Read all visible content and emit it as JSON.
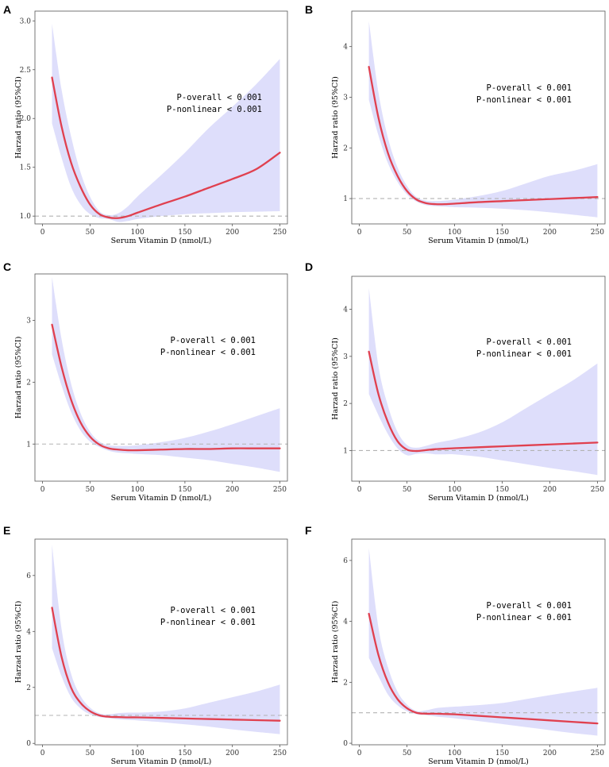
{
  "colors": {
    "curve": "#e0404f",
    "band": "#dcdcfb",
    "reference_line": "#b3b3b3",
    "frame": "#555555"
  },
  "chart_data": [
    {
      "panel": "A",
      "type": "line",
      "xlabel": "Serum Vitamin D (nmol/L)",
      "ylabel": "Harzad ratio (95%CI)",
      "xlim": [
        -8,
        258
      ],
      "ylim": [
        0.92,
        3.1
      ],
      "xticks": [
        0,
        50,
        100,
        150,
        200,
        250
      ],
      "yticks": [
        1.0,
        1.5,
        2.0,
        2.5,
        3.0
      ],
      "ytick_labels": [
        "1.0",
        "1.5",
        "2.0",
        "2.5",
        "3.0"
      ],
      "reference": 1,
      "annotations": [
        "P-overall < 0.001",
        "P-nonlinear < 0.001"
      ],
      "series": {
        "x": [
          10,
          20,
          30,
          40,
          50,
          60,
          70,
          80,
          90,
          100,
          125,
          150,
          175,
          200,
          225,
          250
        ],
        "hr": [
          2.42,
          1.92,
          1.55,
          1.3,
          1.12,
          1.02,
          0.985,
          0.98,
          1.0,
          1.035,
          1.12,
          1.2,
          1.29,
          1.38,
          1.48,
          1.65
        ],
        "lower": [
          1.95,
          1.6,
          1.3,
          1.12,
          1.02,
          0.98,
          0.97,
          0.94,
          0.95,
          0.97,
          1.0,
          1.02,
          1.03,
          1.04,
          1.045,
          1.05
        ],
        "upper": [
          2.97,
          2.3,
          1.82,
          1.45,
          1.2,
          1.05,
          1.01,
          1.03,
          1.1,
          1.2,
          1.42,
          1.65,
          1.9,
          2.12,
          2.35,
          2.61
        ]
      }
    },
    {
      "panel": "B",
      "type": "line",
      "xlabel": "Serum Vitamin D (nmol/L)",
      "ylabel": "Harzad ratio (95%CI)",
      "xlim": [
        -8,
        258
      ],
      "ylim": [
        0.5,
        4.7
      ],
      "xticks": [
        0,
        50,
        100,
        150,
        200,
        250
      ],
      "yticks": [
        1,
        2,
        3,
        4
      ],
      "ytick_labels": [
        "1",
        "2",
        "3",
        "4"
      ],
      "reference": 1,
      "annotations": [
        "P-overall < 0.001",
        "P-nonlinear < 0.001"
      ],
      "series": {
        "x": [
          10,
          20,
          30,
          40,
          50,
          60,
          70,
          80,
          90,
          100,
          125,
          150,
          175,
          200,
          225,
          250
        ],
        "hr": [
          3.6,
          2.6,
          1.9,
          1.45,
          1.15,
          0.98,
          0.91,
          0.89,
          0.89,
          0.9,
          0.93,
          0.95,
          0.97,
          0.99,
          1.01,
          1.03
        ],
        "lower": [
          2.95,
          2.25,
          1.7,
          1.33,
          1.08,
          0.94,
          0.87,
          0.85,
          0.84,
          0.83,
          0.82,
          0.8,
          0.77,
          0.73,
          0.68,
          0.63
        ],
        "upper": [
          4.5,
          3.1,
          2.2,
          1.62,
          1.25,
          1.03,
          0.96,
          0.95,
          0.96,
          0.98,
          1.05,
          1.15,
          1.3,
          1.45,
          1.55,
          1.68
        ]
      }
    },
    {
      "panel": "C",
      "type": "line",
      "xlabel": "Serum Vitamin D (nmol/L)",
      "ylabel": "Harzad ratio (95%CI)",
      "xlim": [
        -8,
        258
      ],
      "ylim": [
        0.4,
        3.75
      ],
      "xticks": [
        0,
        50,
        100,
        150,
        200,
        250
      ],
      "yticks": [
        1,
        2,
        3
      ],
      "ytick_labels": [
        "1",
        "2",
        "3"
      ],
      "reference": 1,
      "annotations": [
        "P-overall < 0.001",
        "P-nonlinear < 0.001"
      ],
      "series": {
        "x": [
          10,
          20,
          30,
          40,
          50,
          60,
          70,
          80,
          90,
          100,
          125,
          150,
          175,
          200,
          225,
          250
        ],
        "hr": [
          2.93,
          2.25,
          1.72,
          1.35,
          1.12,
          0.99,
          0.93,
          0.91,
          0.9,
          0.9,
          0.91,
          0.92,
          0.92,
          0.93,
          0.93,
          0.93
        ],
        "lower": [
          2.45,
          1.95,
          1.52,
          1.22,
          1.04,
          0.95,
          0.89,
          0.86,
          0.85,
          0.84,
          0.82,
          0.78,
          0.74,
          0.68,
          0.62,
          0.55
        ],
        "upper": [
          3.7,
          2.7,
          1.98,
          1.5,
          1.2,
          1.04,
          0.98,
          0.97,
          0.97,
          0.98,
          1.03,
          1.1,
          1.2,
          1.32,
          1.45,
          1.58
        ]
      }
    },
    {
      "panel": "D",
      "type": "line",
      "xlabel": "Serum Vitamin D (nmol/L)",
      "ylabel": "Harzad ratio (95%CI)",
      "xlim": [
        -8,
        258
      ],
      "ylim": [
        0.35,
        4.7
      ],
      "xticks": [
        0,
        50,
        100,
        150,
        200,
        250
      ],
      "yticks": [
        1,
        2,
        3,
        4
      ],
      "ytick_labels": [
        "1",
        "2",
        "3",
        "4"
      ],
      "reference": 1,
      "annotations": [
        "P-overall < 0.001",
        "P-nonlinear < 0.001"
      ],
      "series": {
        "x": [
          10,
          20,
          30,
          40,
          50,
          60,
          70,
          80,
          90,
          100,
          125,
          150,
          175,
          200,
          225,
          250
        ],
        "hr": [
          3.1,
          2.2,
          1.6,
          1.2,
          1.02,
          0.99,
          1.01,
          1.03,
          1.04,
          1.05,
          1.07,
          1.09,
          1.11,
          1.13,
          1.15,
          1.17
        ],
        "lower": [
          2.2,
          1.75,
          1.35,
          1.05,
          0.9,
          0.93,
          0.94,
          0.92,
          0.92,
          0.92,
          0.87,
          0.79,
          0.71,
          0.63,
          0.56,
          0.48
        ],
        "upper": [
          4.45,
          2.8,
          1.95,
          1.4,
          1.12,
          1.06,
          1.1,
          1.16,
          1.2,
          1.24,
          1.38,
          1.6,
          1.9,
          2.2,
          2.5,
          2.85
        ]
      }
    },
    {
      "panel": "E",
      "type": "line",
      "xlabel": "Serum Vitamin D (nmol/L)",
      "ylabel": "Harzad ratio (95%CI)",
      "xlim": [
        -8,
        258
      ],
      "ylim": [
        -0.05,
        7.3
      ],
      "xticks": [
        0,
        50,
        100,
        150,
        200,
        250
      ],
      "yticks": [
        0,
        2,
        4,
        6
      ],
      "ytick_labels": [
        "0",
        "2",
        "4",
        "6"
      ],
      "reference": 1,
      "annotations": [
        "P-overall < 0.001",
        "P-nonlinear < 0.001"
      ],
      "series": {
        "x": [
          10,
          20,
          30,
          40,
          50,
          60,
          70,
          80,
          90,
          100,
          125,
          150,
          175,
          200,
          225,
          250
        ],
        "hr": [
          4.85,
          3.1,
          2.0,
          1.45,
          1.15,
          1.0,
          0.95,
          0.94,
          0.93,
          0.93,
          0.91,
          0.89,
          0.87,
          0.85,
          0.83,
          0.81
        ],
        "lower": [
          3.4,
          2.4,
          1.65,
          1.25,
          1.04,
          0.94,
          0.9,
          0.86,
          0.84,
          0.82,
          0.76,
          0.68,
          0.6,
          0.5,
          0.41,
          0.33
        ],
        "upper": [
          7.1,
          4.1,
          2.5,
          1.7,
          1.28,
          1.07,
          1.04,
          1.08,
          1.1,
          1.1,
          1.14,
          1.25,
          1.45,
          1.65,
          1.85,
          2.1
        ]
      }
    },
    {
      "panel": "F",
      "type": "line",
      "xlabel": "Serum Vitamin D (nmol/L)",
      "ylabel": "Harzad ratio (95%CI)",
      "xlim": [
        -8,
        258
      ],
      "ylim": [
        -0.05,
        6.7
      ],
      "xticks": [
        0,
        50,
        100,
        150,
        200,
        250
      ],
      "yticks": [
        0,
        2,
        4,
        6
      ],
      "ytick_labels": [
        "0",
        "2",
        "4",
        "6"
      ],
      "reference": 1,
      "annotations": [
        "P-overall < 0.001",
        "P-nonlinear < 0.001"
      ],
      "series": {
        "x": [
          10,
          20,
          30,
          40,
          50,
          60,
          70,
          80,
          90,
          100,
          125,
          150,
          175,
          200,
          225,
          250
        ],
        "hr": [
          4.25,
          2.9,
          2.0,
          1.45,
          1.15,
          1.0,
          0.97,
          0.97,
          0.96,
          0.95,
          0.9,
          0.85,
          0.8,
          0.75,
          0.7,
          0.65
        ],
        "lower": [
          2.8,
          2.2,
          1.6,
          1.25,
          1.05,
          0.95,
          0.92,
          0.88,
          0.85,
          0.82,
          0.73,
          0.63,
          0.53,
          0.43,
          0.33,
          0.25
        ],
        "upper": [
          6.4,
          3.8,
          2.5,
          1.7,
          1.27,
          1.06,
          1.08,
          1.15,
          1.18,
          1.2,
          1.25,
          1.32,
          1.45,
          1.58,
          1.7,
          1.82
        ]
      }
    }
  ]
}
